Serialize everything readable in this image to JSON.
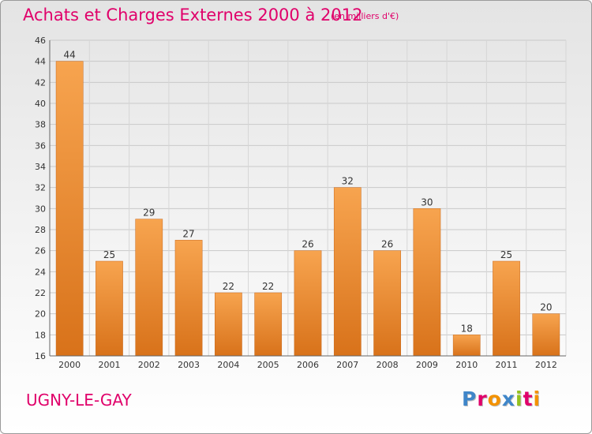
{
  "header": {
    "title": "Achats et Charges Externes 2000 à 2012",
    "subtitle": "(en milliers d'€)"
  },
  "footer": {
    "commune": "UGNY-LE-GAY",
    "logo": "Proxiti"
  },
  "colors": {
    "title": "#e0006a",
    "bar_light": "#f7a44f",
    "bar_dark": "#d8721a",
    "logo_letters": [
      "#3f86c9",
      "#e0006a",
      "#f39200",
      "#3f86c9",
      "#95c11f",
      "#e0006a",
      "#f39200"
    ]
  },
  "chart_data": {
    "type": "bar",
    "categories": [
      "2000",
      "2001",
      "2002",
      "2003",
      "2004",
      "2005",
      "2006",
      "2007",
      "2008",
      "2009",
      "2010",
      "2011",
      "2012"
    ],
    "values": [
      44,
      25,
      29,
      27,
      22,
      22,
      26,
      32,
      26,
      30,
      18,
      25,
      20
    ],
    "title": "Achats et Charges Externes 2000 à 2012",
    "subtitle": "(en milliers d'€)",
    "ylim": [
      16,
      46
    ],
    "yticks": [
      16,
      18,
      20,
      22,
      24,
      26,
      28,
      30,
      32,
      34,
      36,
      38,
      40,
      42,
      44,
      46
    ],
    "grid": true
  }
}
